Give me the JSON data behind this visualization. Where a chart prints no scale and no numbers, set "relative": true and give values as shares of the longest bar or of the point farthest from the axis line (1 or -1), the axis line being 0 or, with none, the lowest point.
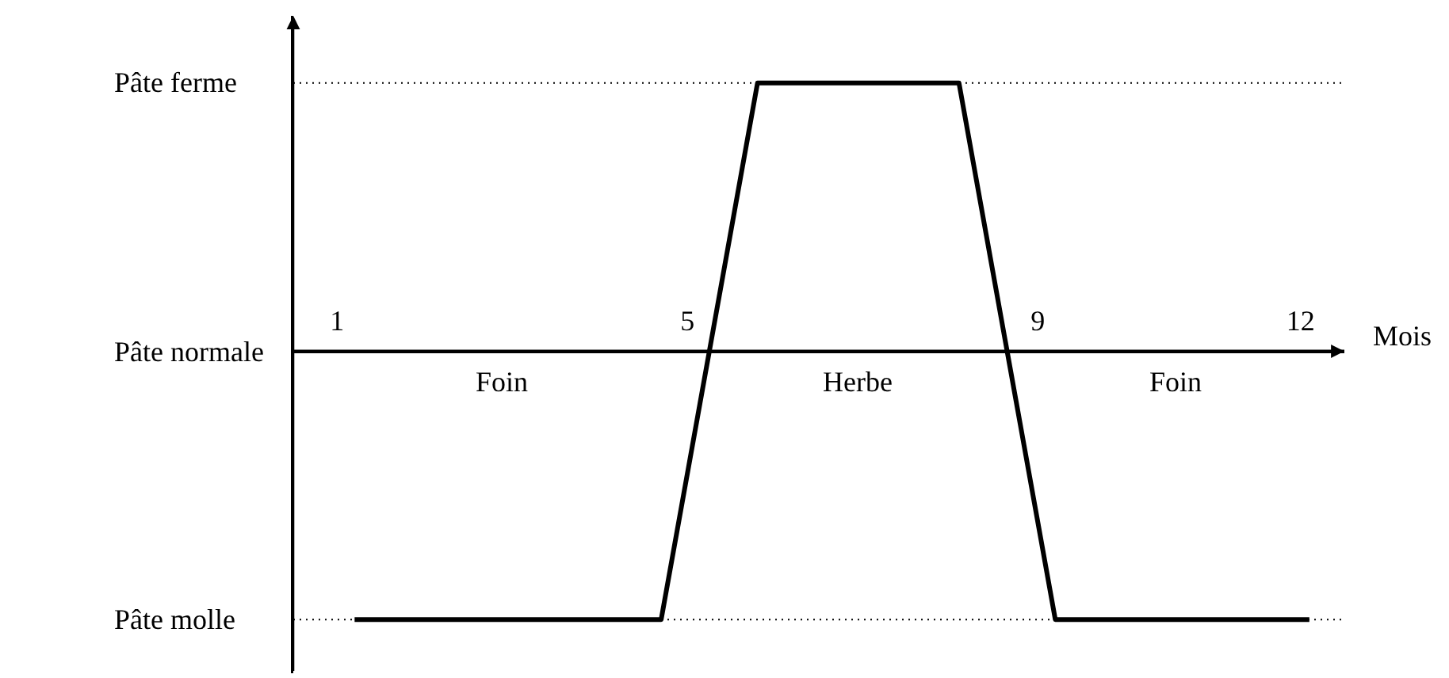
{
  "chart_data": {
    "type": "line",
    "relative": true,
    "xlabel": "Mois",
    "x": [
      1.2,
      4.7,
      5.8,
      8.1,
      9.2,
      12.1
    ],
    "series": [
      {
        "color": "#000000",
        "values": [
          -1,
          -1,
          1,
          1,
          -1,
          -1
        ]
      }
    ],
    "xlim": [
      0.5,
      12.5
    ],
    "xticks": [
      1,
      5,
      9,
      12
    ],
    "line_style": "solid",
    "ref_lines": [
      {
        "axis": "y",
        "value": 1,
        "label": "Pâte ferme",
        "color": "#000000",
        "line_style": "dotted"
      },
      {
        "axis": "y",
        "value": 0,
        "label": "Pâte normale",
        "color": "#000000",
        "line_style": "solid"
      },
      {
        "axis": "y",
        "value": -1,
        "label": "Pâte molle",
        "color": "#000000",
        "line_style": "dotted"
      }
    ],
    "annotations": [
      "Foin",
      "Herbe",
      "Foin"
    ]
  }
}
